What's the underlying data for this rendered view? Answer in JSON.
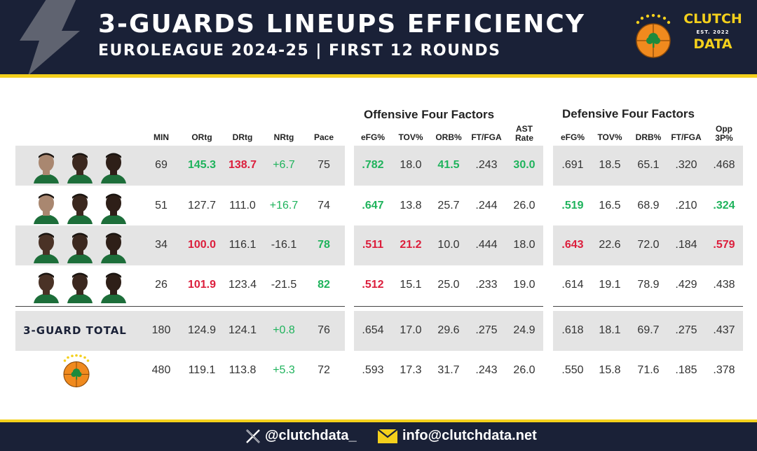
{
  "header": {
    "title": "3-GUARDS  LINEUPS EFFICIENCY",
    "subtitle": "EUROLEAGUE 2024-25 | FIRST 12 ROUNDS",
    "logo": {
      "line1": "CLUTCH",
      "line2": "EST.  2022",
      "line3": "DATA"
    }
  },
  "sections": {
    "offensive": "Offensive Four Factors",
    "defensive": "Defensive Four Factors"
  },
  "columns": {
    "base": [
      "MIN",
      "ORtg",
      "DRtg",
      "NRtg",
      "Pace"
    ],
    "offense": [
      "eFG%",
      "TOV%",
      "ORB%",
      "FT/FGA",
      "AST|Rate"
    ],
    "defense": [
      "eFG%",
      "TOV%",
      "DRB%",
      "FT/FGA",
      "Opp|3P%"
    ]
  },
  "rows": [
    {
      "faces": 3,
      "base": [
        {
          "v": "69"
        },
        {
          "v": "145.3",
          "c": "green"
        },
        {
          "v": "138.7",
          "c": "red"
        },
        {
          "v": "+6.7",
          "c": "lgreen"
        },
        {
          "v": "75"
        }
      ],
      "off": [
        {
          "v": ".782",
          "c": "green"
        },
        {
          "v": "18.0"
        },
        {
          "v": "41.5",
          "c": "green"
        },
        {
          "v": ".243"
        },
        {
          "v": "30.0",
          "c": "green"
        }
      ],
      "def": [
        {
          "v": ".691"
        },
        {
          "v": "18.5"
        },
        {
          "v": "65.1"
        },
        {
          "v": ".320"
        },
        {
          "v": ".468"
        }
      ]
    },
    {
      "faces": 3,
      "base": [
        {
          "v": "51"
        },
        {
          "v": "127.7"
        },
        {
          "v": "111.0"
        },
        {
          "v": "+16.7",
          "c": "lgreen"
        },
        {
          "v": "74"
        }
      ],
      "off": [
        {
          "v": ".647",
          "c": "green"
        },
        {
          "v": "13.8"
        },
        {
          "v": "25.7"
        },
        {
          "v": ".244"
        },
        {
          "v": "26.0"
        }
      ],
      "def": [
        {
          "v": ".519",
          "c": "green"
        },
        {
          "v": "16.5"
        },
        {
          "v": "68.9"
        },
        {
          "v": ".210"
        },
        {
          "v": ".324",
          "c": "green"
        }
      ]
    },
    {
      "faces": 3,
      "base": [
        {
          "v": "34"
        },
        {
          "v": "100.0",
          "c": "red"
        },
        {
          "v": "116.1"
        },
        {
          "v": "-16.1"
        },
        {
          "v": "78",
          "c": "green"
        }
      ],
      "off": [
        {
          "v": ".511",
          "c": "red"
        },
        {
          "v": "21.2",
          "c": "red"
        },
        {
          "v": "10.0"
        },
        {
          "v": ".444"
        },
        {
          "v": "18.0"
        }
      ],
      "def": [
        {
          "v": ".643",
          "c": "red"
        },
        {
          "v": "22.6"
        },
        {
          "v": "72.0"
        },
        {
          "v": ".184"
        },
        {
          "v": ".579",
          "c": "red"
        }
      ]
    },
    {
      "faces": 3,
      "base": [
        {
          "v": "26"
        },
        {
          "v": "101.9",
          "c": "red"
        },
        {
          "v": "123.4"
        },
        {
          "v": "-21.5"
        },
        {
          "v": "82",
          "c": "green"
        }
      ],
      "off": [
        {
          "v": ".512",
          "c": "red"
        },
        {
          "v": "15.1"
        },
        {
          "v": "25.0"
        },
        {
          "v": ".233"
        },
        {
          "v": "19.0"
        }
      ],
      "def": [
        {
          "v": ".614"
        },
        {
          "v": "19.1"
        },
        {
          "v": "78.9"
        },
        {
          "v": ".429"
        },
        {
          "v": ".438"
        }
      ]
    }
  ],
  "total": {
    "label": "3-GUARD TOTAL",
    "base": [
      {
        "v": "180"
      },
      {
        "v": "124.9"
      },
      {
        "v": "124.1"
      },
      {
        "v": "+0.8",
        "c": "lgreen"
      },
      {
        "v": "76"
      }
    ],
    "off": [
      {
        "v": ".654"
      },
      {
        "v": "17.0"
      },
      {
        "v": "29.6"
      },
      {
        "v": ".275"
      },
      {
        "v": "24.9"
      }
    ],
    "def": [
      {
        "v": ".618"
      },
      {
        "v": "18.1"
      },
      {
        "v": "69.7"
      },
      {
        "v": ".275"
      },
      {
        "v": ".437"
      }
    ]
  },
  "team": {
    "base": [
      {
        "v": "480"
      },
      {
        "v": "119.1"
      },
      {
        "v": "113.8"
      },
      {
        "v": "+5.3",
        "c": "lgreen"
      },
      {
        "v": "72"
      }
    ],
    "off": [
      {
        "v": ".593"
      },
      {
        "v": "17.3"
      },
      {
        "v": "31.7"
      },
      {
        "v": ".243"
      },
      {
        "v": "26.0"
      }
    ],
    "def": [
      {
        "v": ".550"
      },
      {
        "v": "15.8"
      },
      {
        "v": "71.6"
      },
      {
        "v": ".185"
      },
      {
        "v": ".378"
      }
    ]
  },
  "footer": {
    "twitter": "@clutchdata_",
    "email": "info@clutchdata.net"
  },
  "colors": {
    "navy": "#1a2137",
    "yellow": "#f4d01c",
    "green": "#1fb35c",
    "red": "#dc1e3c",
    "band": "#e4e4e4"
  }
}
